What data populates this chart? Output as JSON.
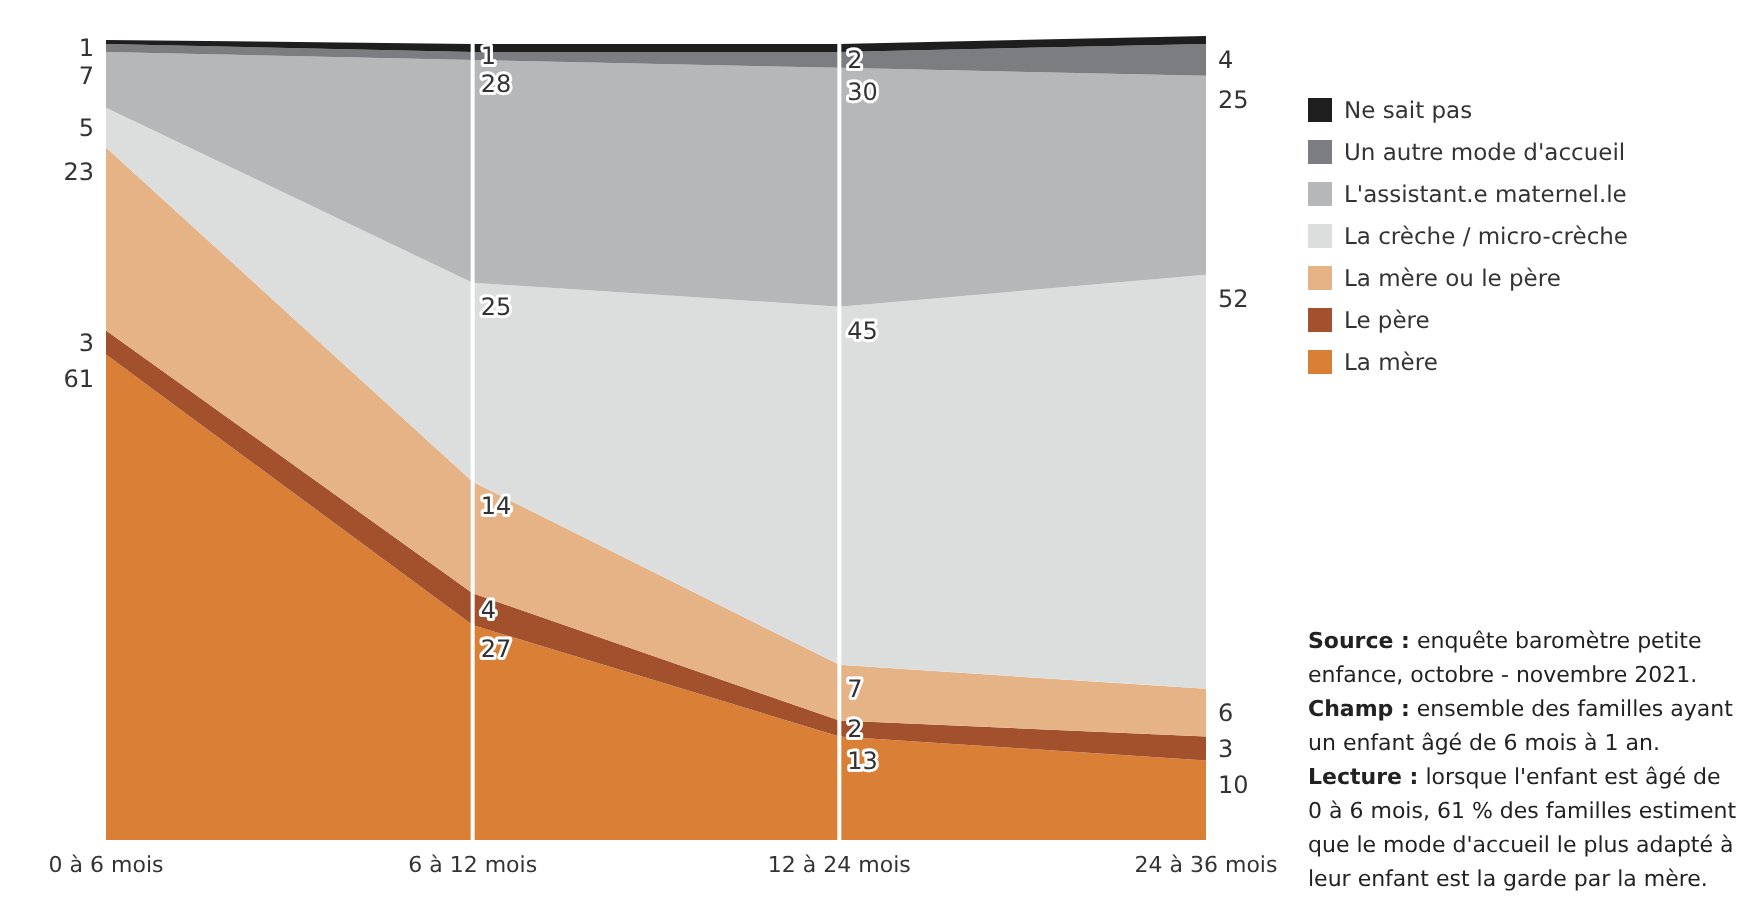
{
  "chart_data": {
    "type": "area",
    "stacked": true,
    "categories": [
      "0 à 6 mois",
      "6 à 12 mois",
      "12 à 24 mois",
      "24 à 36 mois"
    ],
    "series": [
      {
        "name": "La mère",
        "color": "#d98036",
        "values": [
          61,
          27,
          13,
          10
        ],
        "value_labels": [
          "61",
          "27",
          "13",
          "10"
        ]
      },
      {
        "name": "Le père",
        "color": "#a3502c",
        "values": [
          3,
          4,
          2,
          3
        ],
        "value_labels": [
          "3",
          "4",
          "2",
          "3"
        ]
      },
      {
        "name": "La mère ou le père",
        "color": "#e6b386",
        "values": [
          23,
          14,
          7,
          6
        ],
        "value_labels": [
          "23",
          "14",
          "7",
          "6"
        ]
      },
      {
        "name": "La crèche / micro-crèche",
        "color": "#dcdddd",
        "values": [
          5,
          25,
          45,
          52
        ],
        "value_labels": [
          "5",
          "25",
          "45",
          "52"
        ]
      },
      {
        "name": "L'assistant.e maternel.le",
        "color": "#b5b7b9",
        "values": [
          7,
          28,
          30,
          25
        ],
        "value_labels": [
          "7",
          "28",
          "30",
          "25"
        ]
      },
      {
        "name": "Un autre mode d'accueil",
        "color": "#7b7d80",
        "values": [
          1,
          1,
          2,
          4
        ],
        "value_labels": [
          "1",
          "1",
          "2",
          "4"
        ]
      },
      {
        "name": "Ne sait pas",
        "color": "#1e1e1e",
        "values": [
          0.5,
          1,
          1,
          1
        ],
        "value_labels": [
          null,
          null,
          null,
          null
        ]
      }
    ],
    "grid": "x",
    "legend": "right",
    "tick_labels": "x",
    "annotations": [
      "Source : enquête baromètre petite enfance, octobre - novembre 2021.",
      "Champ : ensemble des familles ayant un enfant âgé de 6 mois à 1 an.",
      "Lecture : lorsque l'enfant est âgé de 0 à 6 mois, 61 % des familles estiment que le mode d'accueil le plus adapté à leur enfant est la garde par la mère."
    ]
  }
}
